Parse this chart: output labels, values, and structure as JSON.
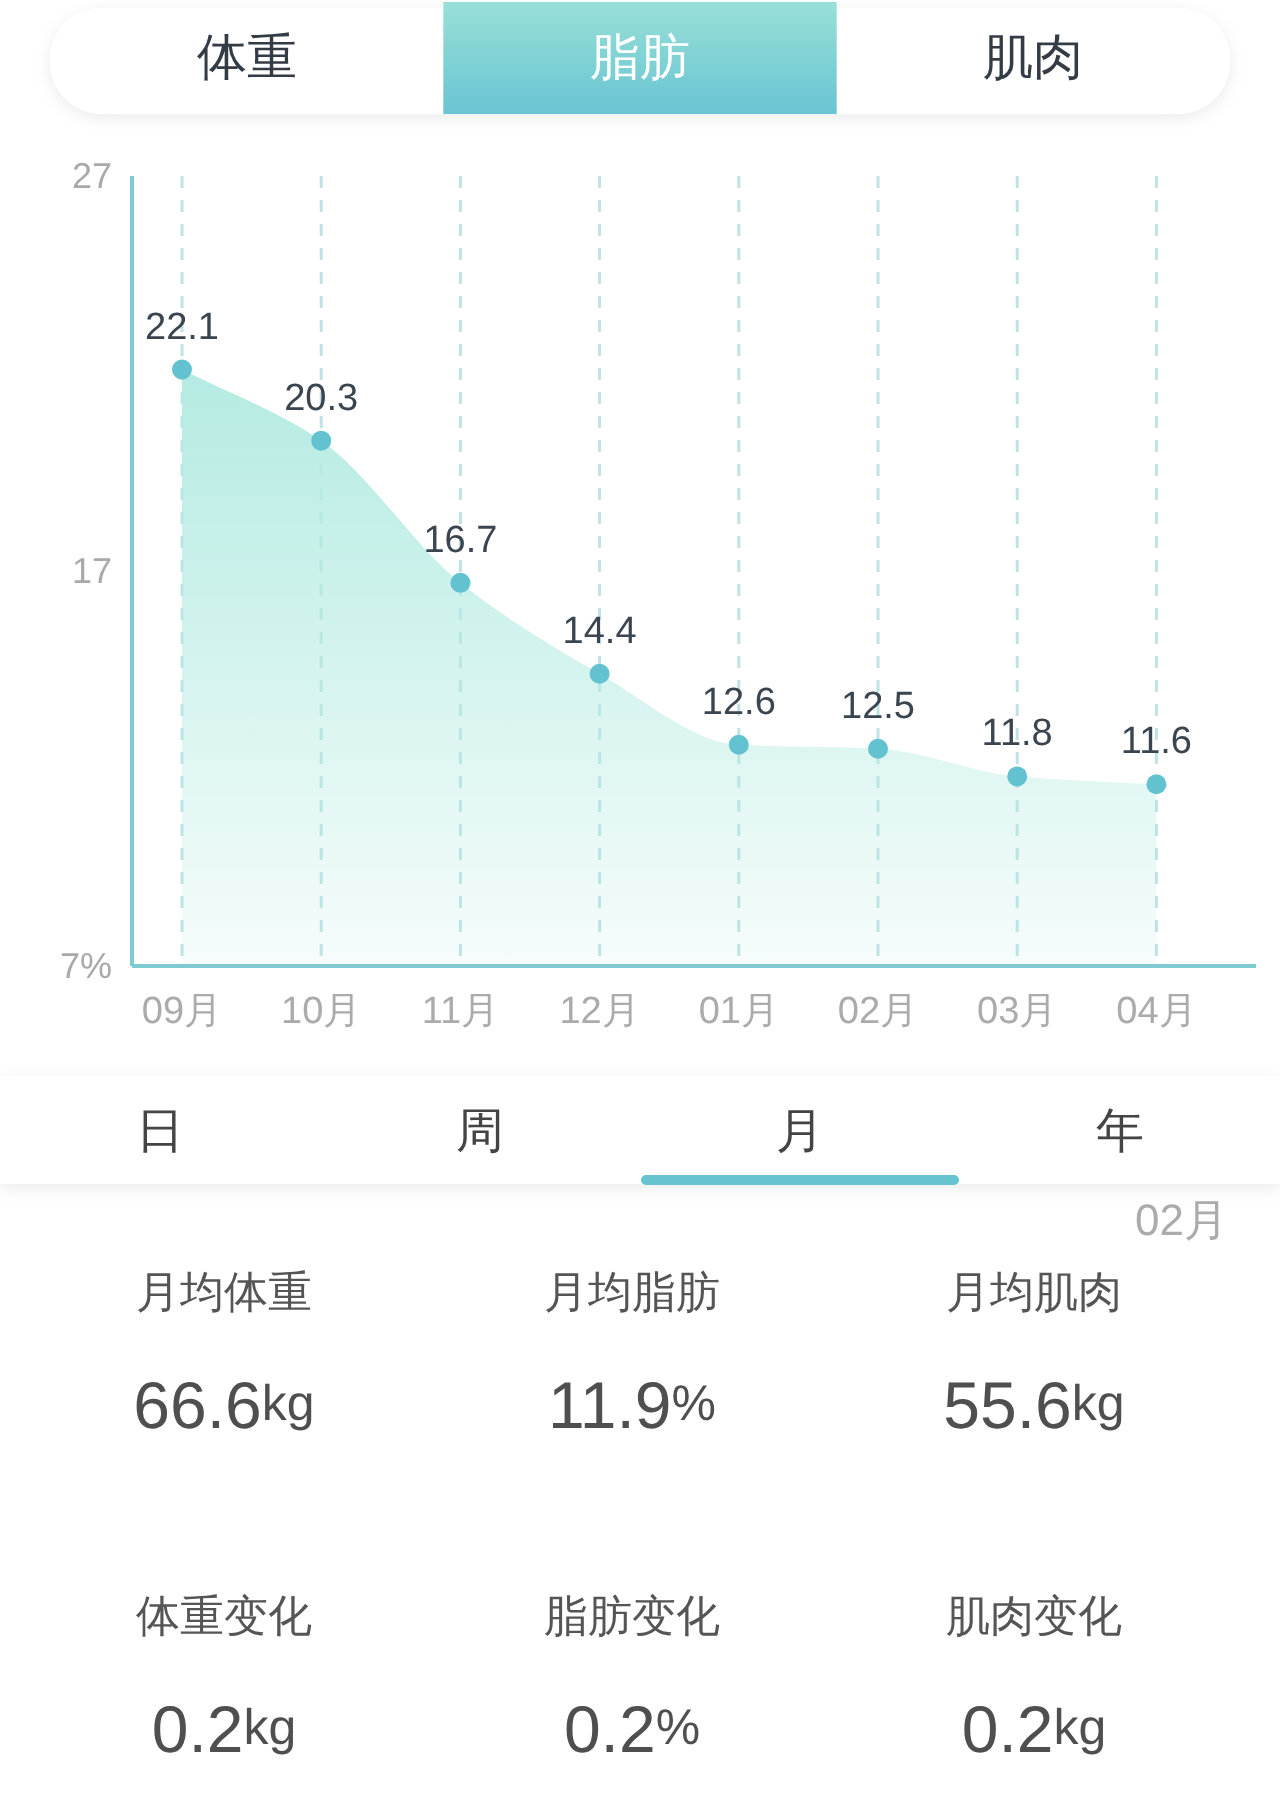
{
  "chart_data": [
    {
      "type": "area",
      "categories": [
        "09月",
        "10月",
        "11月",
        "12月",
        "01月",
        "02月",
        "03月",
        "04月"
      ],
      "values": [
        22.1,
        20.3,
        16.7,
        14.4,
        12.6,
        12.5,
        11.8,
        11.6
      ],
      "color": "#b4ebe2",
      "ylim": [
        7,
        27
      ],
      "yticks": [
        {
          "value": 7,
          "label": "7%"
        },
        17,
        27
      ],
      "grid": "x",
      "marker": "circle",
      "data_labels": true,
      "annotations": [
        "体重",
        "脂肪",
        "肌肉",
        "日",
        "周",
        "月",
        "年"
      ]
    },
    {
      "type": "other",
      "annotations": [
        "02月",
        "月均体重",
        "66.6kg",
        "月均脂肪",
        "11.9%",
        "月均肌肉",
        "55.6kg",
        "体重变化",
        "0.2kg",
        "脂肪变化",
        "0.2%",
        "肌肉变化",
        "0.2kg"
      ]
    }
  ]
}
